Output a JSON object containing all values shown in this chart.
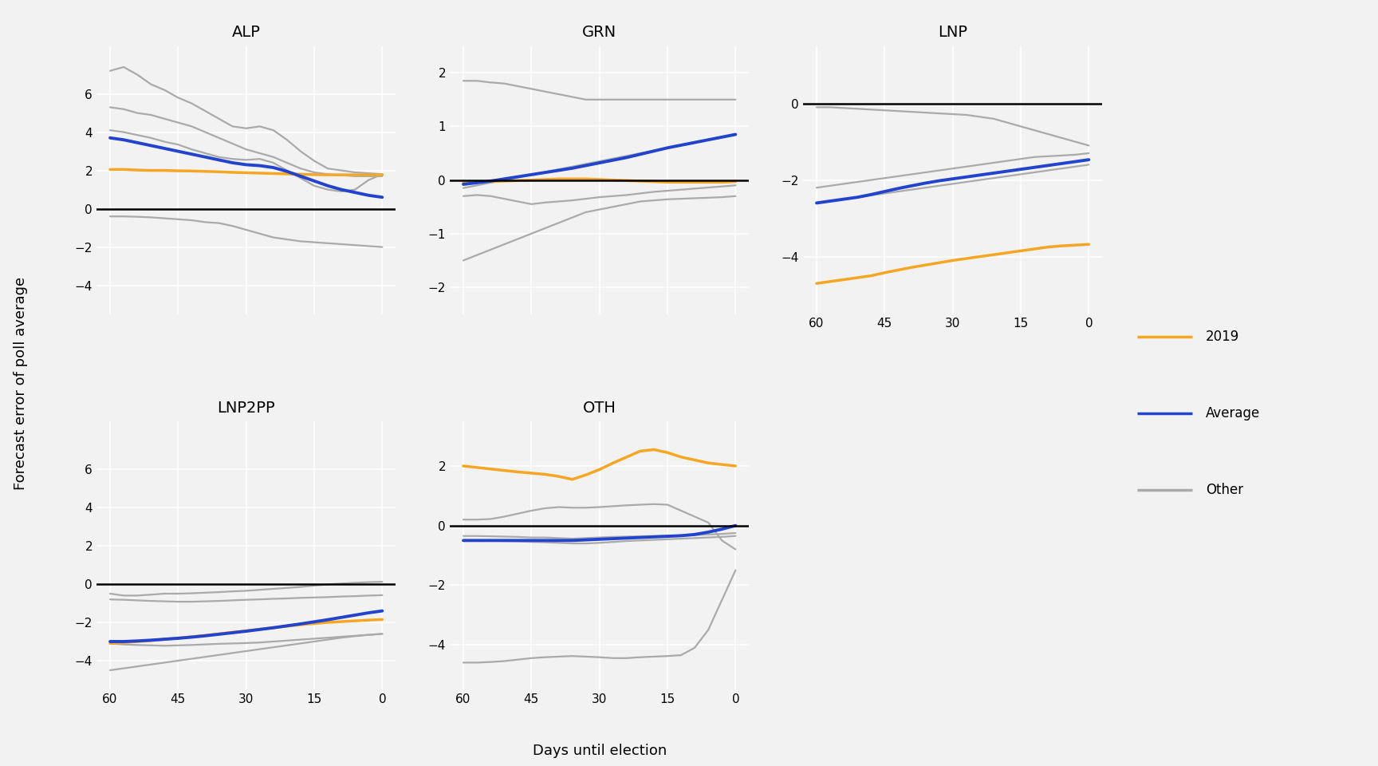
{
  "panels": [
    "ALP",
    "GRN",
    "LNP",
    "LNP2PP",
    "OTH"
  ],
  "x_days": [
    60,
    57,
    54,
    51,
    48,
    45,
    42,
    39,
    36,
    33,
    30,
    27,
    24,
    21,
    18,
    15,
    12,
    9,
    6,
    3,
    0
  ],
  "colors": {
    "2019": "#f5a623",
    "average": "#2244cc",
    "other": "#aaaaaa"
  },
  "line_widths": {
    "2019": 2.5,
    "average": 2.8,
    "other": 1.6
  },
  "ALP": {
    "grey_lines": [
      [
        7.2,
        7.4,
        7.0,
        6.5,
        6.2,
        5.8,
        5.5,
        5.1,
        4.7,
        4.3,
        4.2,
        4.3,
        4.1,
        3.6,
        3.0,
        2.5,
        2.1,
        2.0,
        1.9,
        1.85,
        1.8
      ],
      [
        5.3,
        5.2,
        5.0,
        4.9,
        4.7,
        4.5,
        4.3,
        4.0,
        3.7,
        3.4,
        3.1,
        2.9,
        2.7,
        2.4,
        2.1,
        1.9,
        1.8,
        1.75,
        1.7,
        1.7,
        1.7
      ],
      [
        4.1,
        4.0,
        3.85,
        3.7,
        3.5,
        3.35,
        3.1,
        2.9,
        2.7,
        2.6,
        2.55,
        2.6,
        2.4,
        2.0,
        1.6,
        1.2,
        1.0,
        0.9,
        1.0,
        1.5,
        1.8
      ],
      [
        -0.4,
        -0.4,
        -0.42,
        -0.45,
        -0.5,
        -0.55,
        -0.6,
        -0.7,
        -0.75,
        -0.9,
        -1.1,
        -1.3,
        -1.5,
        -1.6,
        -1.7,
        -1.75,
        -1.8,
        -1.85,
        -1.9,
        -1.95,
        -2.0
      ]
    ],
    "average_line": [
      3.7,
      3.6,
      3.45,
      3.3,
      3.15,
      3.0,
      2.85,
      2.7,
      2.55,
      2.4,
      2.3,
      2.25,
      2.15,
      1.95,
      1.7,
      1.45,
      1.2,
      1.0,
      0.85,
      0.7,
      0.6
    ],
    "line_2019": [
      2.05,
      2.05,
      2.02,
      2.0,
      2.0,
      1.98,
      1.97,
      1.95,
      1.93,
      1.9,
      1.88,
      1.86,
      1.84,
      1.82,
      1.8,
      1.78,
      1.77,
      1.77,
      1.77,
      1.77,
      1.77
    ],
    "ylim": [
      -5.5,
      8.5
    ],
    "yticks": [
      -4,
      -2,
      0,
      2,
      4,
      6
    ]
  },
  "GRN": {
    "grey_lines": [
      [
        1.85,
        1.85,
        1.82,
        1.8,
        1.75,
        1.7,
        1.65,
        1.6,
        1.55,
        1.5,
        1.5,
        1.5,
        1.5,
        1.5,
        1.5,
        1.5,
        1.5,
        1.5,
        1.5,
        1.5,
        1.5
      ],
      [
        -0.15,
        -0.1,
        -0.05,
        0.0,
        0.05,
        0.1,
        0.15,
        0.2,
        0.25,
        0.3,
        0.35,
        0.4,
        0.45,
        0.5,
        0.55,
        0.6,
        0.65,
        0.7,
        0.75,
        0.8,
        0.85
      ],
      [
        -0.3,
        -0.28,
        -0.3,
        -0.35,
        -0.4,
        -0.45,
        -0.42,
        -0.4,
        -0.38,
        -0.35,
        -0.32,
        -0.3,
        -0.28,
        -0.25,
        -0.22,
        -0.2,
        -0.18,
        -0.16,
        -0.14,
        -0.12,
        -0.1
      ],
      [
        -1.5,
        -1.4,
        -1.3,
        -1.2,
        -1.1,
        -1.0,
        -0.9,
        -0.8,
        -0.7,
        -0.6,
        -0.55,
        -0.5,
        -0.45,
        -0.4,
        -0.38,
        -0.36,
        -0.35,
        -0.34,
        -0.33,
        -0.32,
        -0.3
      ]
    ],
    "average_line": [
      -0.08,
      -0.05,
      -0.02,
      0.02,
      0.06,
      0.1,
      0.14,
      0.18,
      0.22,
      0.27,
      0.32,
      0.37,
      0.42,
      0.48,
      0.54,
      0.6,
      0.65,
      0.7,
      0.75,
      0.8,
      0.85
    ],
    "line_2019": [
      -0.05,
      -0.04,
      -0.03,
      -0.02,
      -0.01,
      0.0,
      0.01,
      0.02,
      0.02,
      0.02,
      0.01,
      0.0,
      -0.01,
      -0.02,
      -0.03,
      -0.04,
      -0.04,
      -0.04,
      -0.04,
      -0.04,
      -0.03
    ],
    "ylim": [
      -2.5,
      2.5
    ],
    "yticks": [
      -2,
      -1,
      0,
      1,
      2
    ]
  },
  "LNP": {
    "grey_lines": [
      [
        -0.1,
        -0.1,
        -0.12,
        -0.14,
        -0.16,
        -0.18,
        -0.2,
        -0.22,
        -0.24,
        -0.26,
        -0.28,
        -0.3,
        -0.35,
        -0.4,
        -0.5,
        -0.6,
        -0.7,
        -0.8,
        -0.9,
        -1.0,
        -1.1
      ],
      [
        -2.2,
        -2.15,
        -2.1,
        -2.05,
        -2.0,
        -1.95,
        -1.9,
        -1.85,
        -1.8,
        -1.75,
        -1.7,
        -1.65,
        -1.6,
        -1.55,
        -1.5,
        -1.45,
        -1.4,
        -1.38,
        -1.36,
        -1.34,
        -1.3
      ],
      [
        -2.6,
        -2.55,
        -2.5,
        -2.45,
        -2.4,
        -2.35,
        -2.3,
        -2.25,
        -2.2,
        -2.15,
        -2.1,
        -2.05,
        -2.0,
        -1.95,
        -1.9,
        -1.85,
        -1.8,
        -1.75,
        -1.7,
        -1.65,
        -1.6
      ]
    ],
    "average_line": [
      -2.6,
      -2.55,
      -2.5,
      -2.45,
      -2.38,
      -2.3,
      -2.22,
      -2.15,
      -2.08,
      -2.02,
      -1.97,
      -1.92,
      -1.87,
      -1.82,
      -1.77,
      -1.72,
      -1.67,
      -1.62,
      -1.57,
      -1.52,
      -1.47
    ],
    "line_2019": [
      -4.7,
      -4.65,
      -4.6,
      -4.55,
      -4.5,
      -4.42,
      -4.35,
      -4.28,
      -4.22,
      -4.16,
      -4.1,
      -4.05,
      -4.0,
      -3.95,
      -3.9,
      -3.85,
      -3.8,
      -3.75,
      -3.72,
      -3.7,
      -3.68
    ],
    "ylim": [
      -5.5,
      1.5
    ],
    "yticks": [
      -4,
      -2,
      0
    ],
    "show_xticks": true
  },
  "LNP2PP": {
    "grey_lines": [
      [
        -0.5,
        -0.6,
        -0.6,
        -0.55,
        -0.5,
        -0.5,
        -0.48,
        -0.45,
        -0.42,
        -0.38,
        -0.35,
        -0.3,
        -0.25,
        -0.2,
        -0.15,
        -0.08,
        -0.02,
        0.03,
        0.07,
        0.1,
        0.12
      ],
      [
        -0.8,
        -0.82,
        -0.85,
        -0.88,
        -0.9,
        -0.92,
        -0.92,
        -0.9,
        -0.88,
        -0.85,
        -0.82,
        -0.8,
        -0.77,
        -0.75,
        -0.72,
        -0.7,
        -0.68,
        -0.65,
        -0.63,
        -0.6,
        -0.58
      ],
      [
        -3.1,
        -3.15,
        -3.18,
        -3.2,
        -3.22,
        -3.2,
        -3.18,
        -3.15,
        -3.12,
        -3.1,
        -3.08,
        -3.05,
        -3.0,
        -2.95,
        -2.9,
        -2.85,
        -2.8,
        -2.75,
        -2.7,
        -2.65,
        -2.6
      ],
      [
        -4.5,
        -4.4,
        -4.3,
        -4.2,
        -4.1,
        -4.0,
        -3.9,
        -3.8,
        -3.7,
        -3.6,
        -3.5,
        -3.4,
        -3.3,
        -3.2,
        -3.1,
        -3.0,
        -2.9,
        -2.8,
        -2.72,
        -2.65,
        -2.6
      ]
    ],
    "average_line": [
      -3.0,
      -3.0,
      -2.97,
      -2.93,
      -2.88,
      -2.83,
      -2.77,
      -2.7,
      -2.62,
      -2.54,
      -2.46,
      -2.37,
      -2.28,
      -2.18,
      -2.08,
      -1.97,
      -1.86,
      -1.74,
      -1.62,
      -1.5,
      -1.4
    ],
    "line_2019": [
      -3.1,
      -3.05,
      -3.0,
      -2.95,
      -2.88,
      -2.82,
      -2.75,
      -2.68,
      -2.6,
      -2.52,
      -2.44,
      -2.36,
      -2.28,
      -2.2,
      -2.12,
      -2.06,
      -2.0,
      -1.96,
      -1.92,
      -1.88,
      -1.85
    ],
    "ylim": [
      -5.5,
      8.5
    ],
    "yticks": [
      -4,
      -2,
      0,
      2,
      4,
      6
    ]
  },
  "OTH": {
    "grey_lines": [
      [
        -0.35,
        -0.35,
        -0.36,
        -0.37,
        -0.38,
        -0.4,
        -0.4,
        -0.42,
        -0.44,
        -0.42,
        -0.4,
        -0.38,
        -0.37,
        -0.36,
        -0.35,
        -0.34,
        -0.33,
        -0.32,
        -0.3,
        -0.28,
        -0.25
      ],
      [
        -0.5,
        -0.5,
        -0.51,
        -0.52,
        -0.53,
        -0.55,
        -0.56,
        -0.58,
        -0.6,
        -0.6,
        -0.58,
        -0.55,
        -0.52,
        -0.5,
        -0.48,
        -0.46,
        -0.44,
        -0.42,
        -0.4,
        -0.38,
        -0.35
      ],
      [
        0.2,
        0.2,
        0.22,
        0.3,
        0.4,
        0.5,
        0.58,
        0.62,
        0.6,
        0.6,
        0.62,
        0.65,
        0.68,
        0.7,
        0.72,
        0.7,
        0.5,
        0.3,
        0.1,
        -0.5,
        -0.8
      ],
      [
        -4.6,
        -4.6,
        -4.58,
        -4.55,
        -4.5,
        -4.45,
        -4.42,
        -4.4,
        -4.38,
        -4.4,
        -4.42,
        -4.45,
        -4.45,
        -4.42,
        -4.4,
        -4.38,
        -4.35,
        -4.1,
        -3.5,
        -2.5,
        -1.5
      ]
    ],
    "average_line": [
      -0.5,
      -0.5,
      -0.5,
      -0.5,
      -0.5,
      -0.5,
      -0.5,
      -0.5,
      -0.5,
      -0.48,
      -0.46,
      -0.44,
      -0.42,
      -0.4,
      -0.38,
      -0.36,
      -0.34,
      -0.3,
      -0.22,
      -0.12,
      0.0
    ],
    "line_2019": [
      2.0,
      1.95,
      1.9,
      1.85,
      1.8,
      1.76,
      1.72,
      1.65,
      1.55,
      1.7,
      1.88,
      2.1,
      2.3,
      2.5,
      2.55,
      2.45,
      2.3,
      2.2,
      2.1,
      2.05,
      2.0
    ],
    "ylim": [
      -5.5,
      3.5
    ],
    "yticks": [
      -4,
      -2,
      0,
      2
    ]
  },
  "ylabel": "Forecast error of poll average",
  "xlabel": "Days until election",
  "background_color": "#f2f2f2",
  "plot_bg_color": "#f2f2f2",
  "grid_color": "#ffffff",
  "zero_line_color": "#000000",
  "legend_items": [
    "2019",
    "Average",
    "Other"
  ],
  "legend_colors": [
    "#f5a623",
    "#2244cc",
    "#aaaaaa"
  ]
}
